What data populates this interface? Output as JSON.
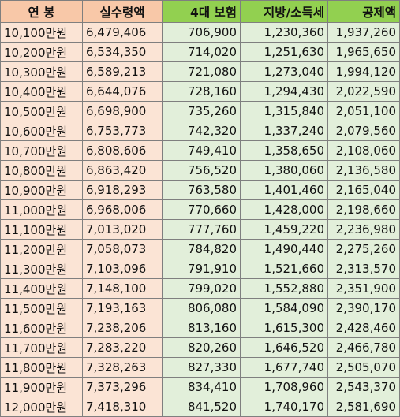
{
  "table": {
    "headers": {
      "salary": "연 봉",
      "net_monthly": "실수령액",
      "insurance": "4대 보험",
      "local_income_tax": "지방/소득세",
      "deduction": "공제액"
    },
    "rows": [
      {
        "salary": "10,100만원",
        "net_monthly": "6,479,406",
        "insurance": "706,900",
        "local_income_tax": "1,230,360",
        "deduction": "1,937,260"
      },
      {
        "salary": "10,200만원",
        "net_monthly": "6,534,350",
        "insurance": "714,020",
        "local_income_tax": "1,251,630",
        "deduction": "1,965,650"
      },
      {
        "salary": "10,300만원",
        "net_monthly": "6,589,213",
        "insurance": "721,080",
        "local_income_tax": "1,273,040",
        "deduction": "1,994,120"
      },
      {
        "salary": "10,400만원",
        "net_monthly": "6,644,076",
        "insurance": "728,160",
        "local_income_tax": "1,294,430",
        "deduction": "2,022,590"
      },
      {
        "salary": "10,500만원",
        "net_monthly": "6,698,900",
        "insurance": "735,260",
        "local_income_tax": "1,315,840",
        "deduction": "2,051,100"
      },
      {
        "salary": "10,600만원",
        "net_monthly": "6,753,773",
        "insurance": "742,320",
        "local_income_tax": "1,337,240",
        "deduction": "2,079,560"
      },
      {
        "salary": "10,700만원",
        "net_monthly": "6,808,606",
        "insurance": "749,410",
        "local_income_tax": "1,358,650",
        "deduction": "2,108,060"
      },
      {
        "salary": "10,800만원",
        "net_monthly": "6,863,420",
        "insurance": "756,520",
        "local_income_tax": "1,380,060",
        "deduction": "2,136,580"
      },
      {
        "salary": "10,900만원",
        "net_monthly": "6,918,293",
        "insurance": "763,580",
        "local_income_tax": "1,401,460",
        "deduction": "2,165,040"
      },
      {
        "salary": "11,000만원",
        "net_monthly": "6,968,006",
        "insurance": "770,660",
        "local_income_tax": "1,428,000",
        "deduction": "2,198,660"
      },
      {
        "salary": "11,100만원",
        "net_monthly": "7,013,020",
        "insurance": "777,760",
        "local_income_tax": "1,459,220",
        "deduction": "2,236,980"
      },
      {
        "salary": "11,200만원",
        "net_monthly": "7,058,073",
        "insurance": "784,820",
        "local_income_tax": "1,490,440",
        "deduction": "2,275,260"
      },
      {
        "salary": "11,300만원",
        "net_monthly": "7,103,096",
        "insurance": "791,910",
        "local_income_tax": "1,521,660",
        "deduction": "2,313,570"
      },
      {
        "salary": "11,400만원",
        "net_monthly": "7,148,100",
        "insurance": "799,020",
        "local_income_tax": "1,552,880",
        "deduction": "2,351,900"
      },
      {
        "salary": "11,500만원",
        "net_monthly": "7,193,163",
        "insurance": "806,080",
        "local_income_tax": "1,584,090",
        "deduction": "2,390,170"
      },
      {
        "salary": "11,600만원",
        "net_monthly": "7,238,206",
        "insurance": "813,160",
        "local_income_tax": "1,615,300",
        "deduction": "2,428,460"
      },
      {
        "salary": "11,700만원",
        "net_monthly": "7,283,220",
        "insurance": "820,260",
        "local_income_tax": "1,646,520",
        "deduction": "2,466,780"
      },
      {
        "salary": "11,800만원",
        "net_monthly": "7,328,263",
        "insurance": "827,330",
        "local_income_tax": "1,677,740",
        "deduction": "2,505,070"
      },
      {
        "salary": "11,900만원",
        "net_monthly": "7,373,296",
        "insurance": "834,410",
        "local_income_tax": "1,708,960",
        "deduction": "2,543,370"
      },
      {
        "salary": "12,000만원",
        "net_monthly": "7,418,310",
        "insurance": "841,520",
        "local_income_tax": "1,740,170",
        "deduction": "2,581,690"
      }
    ]
  },
  "colors": {
    "header_orange": "#f8c8a8",
    "header_green": "#92d050",
    "cell_orange": "#fbe4d5",
    "cell_green": "#e2efda",
    "border": "#7f7f7f"
  }
}
